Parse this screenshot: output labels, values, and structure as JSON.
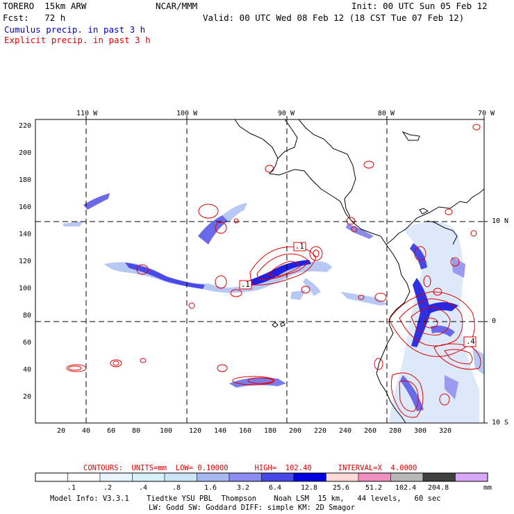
{
  "header": {
    "model": "TORERO  15km ARW",
    "org": "NCAR/MMM",
    "init": "Init: 00 UTC Sun 05 Feb 12",
    "fcst": "Fcst:   72 h",
    "valid": "Valid: 00 UTC Wed 08 Feb 12 (18 CST Tue 07 Feb 12)",
    "cumulus": "Cumulus precip. in past 3 h",
    "explicit": "Explicit precip. in past 3 h"
  },
  "map": {
    "top_lon_labels": [
      "110 W",
      "100 W",
      "90 W",
      "80 W",
      "70 W"
    ],
    "right_lat_labels": [
      "10 N",
      "0",
      "10 S"
    ],
    "y_ticks": [
      "220",
      "200",
      "180",
      "160",
      "140",
      "120",
      "100",
      "80",
      "60",
      "40",
      "20"
    ],
    "x_ticks": [
      "20",
      "40",
      "60",
      "80",
      "100",
      "120",
      "140",
      "160",
      "180",
      "200",
      "220",
      "240",
      "260",
      "280",
      "300",
      "320"
    ],
    "contour_boxes": [
      ".1",
      ".1",
      ".4"
    ]
  },
  "footer": {
    "contours": "CONTOURS:  UNITS=mm  LOW= 0.10000      HIGH=  102.40      INTERVAL=X  4.0000",
    "scale_labels": [
      ".1",
      ".2",
      ".4",
      ".8",
      "1.6",
      "3.2",
      "6.4",
      "12.8",
      "25.6",
      "51.2",
      "102.4",
      "204.8"
    ],
    "scale_unit": "mm",
    "scale_colors": [
      "#ffffff",
      "#ffffff",
      "#e8f4ff",
      "#d8f0f8",
      "#cce4f8",
      "#a8b8f0",
      "#8c8cf0",
      "#4848e8",
      "#0000e0",
      "#ffd8d8",
      "#f090c0",
      "#b8b8b8",
      "#404040",
      "#d8a8f8"
    ],
    "model_info_1": "Model Info: V3.3.1    Tiedtke YSU PBL  Thompson    Noah LSM  15 km,   44 levels,   60 sec",
    "model_info_2": "LW: Godd SW: Goddard DIFF: simple KM: 2D Smagor"
  }
}
